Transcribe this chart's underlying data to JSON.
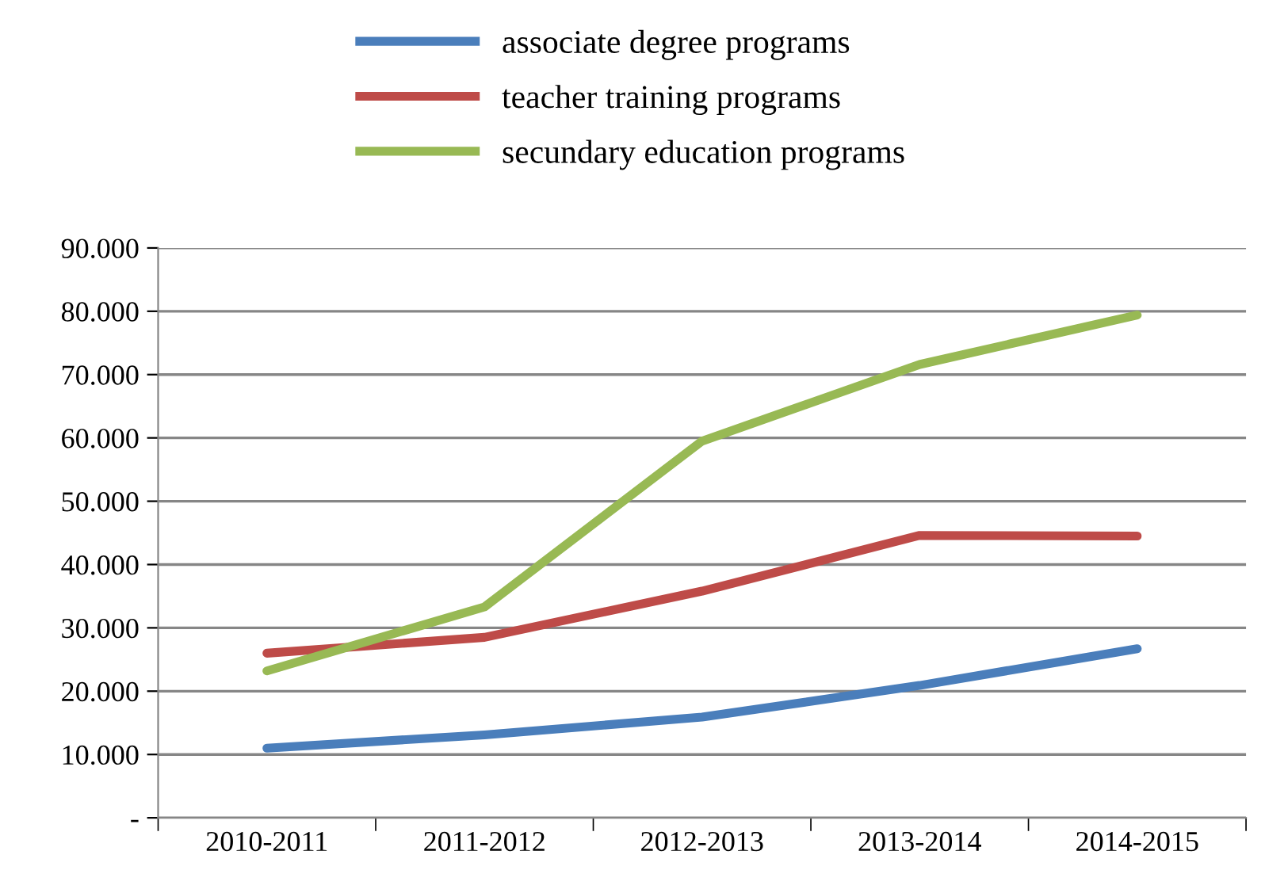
{
  "chart_data": {
    "type": "line",
    "categories": [
      "2010-2011",
      "2011-2012",
      "2012-2013",
      "2013-2014",
      "2014-2015"
    ],
    "series": [
      {
        "name": "associate degree programs",
        "color": "#4a7ebb",
        "values": [
          11000,
          13100,
          15900,
          20900,
          26700
        ]
      },
      {
        "name": "teacher training programs",
        "color": "#be4b48",
        "values": [
          26000,
          28500,
          35800,
          44600,
          44500
        ]
      },
      {
        "name": "secundary education programs",
        "color": "#98b954",
        "values": [
          23200,
          33300,
          59500,
          71600,
          79400
        ]
      }
    ],
    "ylim": [
      0,
      90000
    ],
    "yticks": [
      {
        "value": 0,
        "label": "-"
      },
      {
        "value": 10000,
        "label": "10.000"
      },
      {
        "value": 20000,
        "label": "20.000"
      },
      {
        "value": 30000,
        "label": "30.000"
      },
      {
        "value": 40000,
        "label": "40.000"
      },
      {
        "value": 50000,
        "label": "50.000"
      },
      {
        "value": 60000,
        "label": "60.000"
      },
      {
        "value": 70000,
        "label": "70.000"
      },
      {
        "value": 80000,
        "label": "80.000"
      },
      {
        "value": 90000,
        "label": "90.000"
      }
    ],
    "grid": "y",
    "legend": "top",
    "marker": "none",
    "line_style": "solid"
  }
}
